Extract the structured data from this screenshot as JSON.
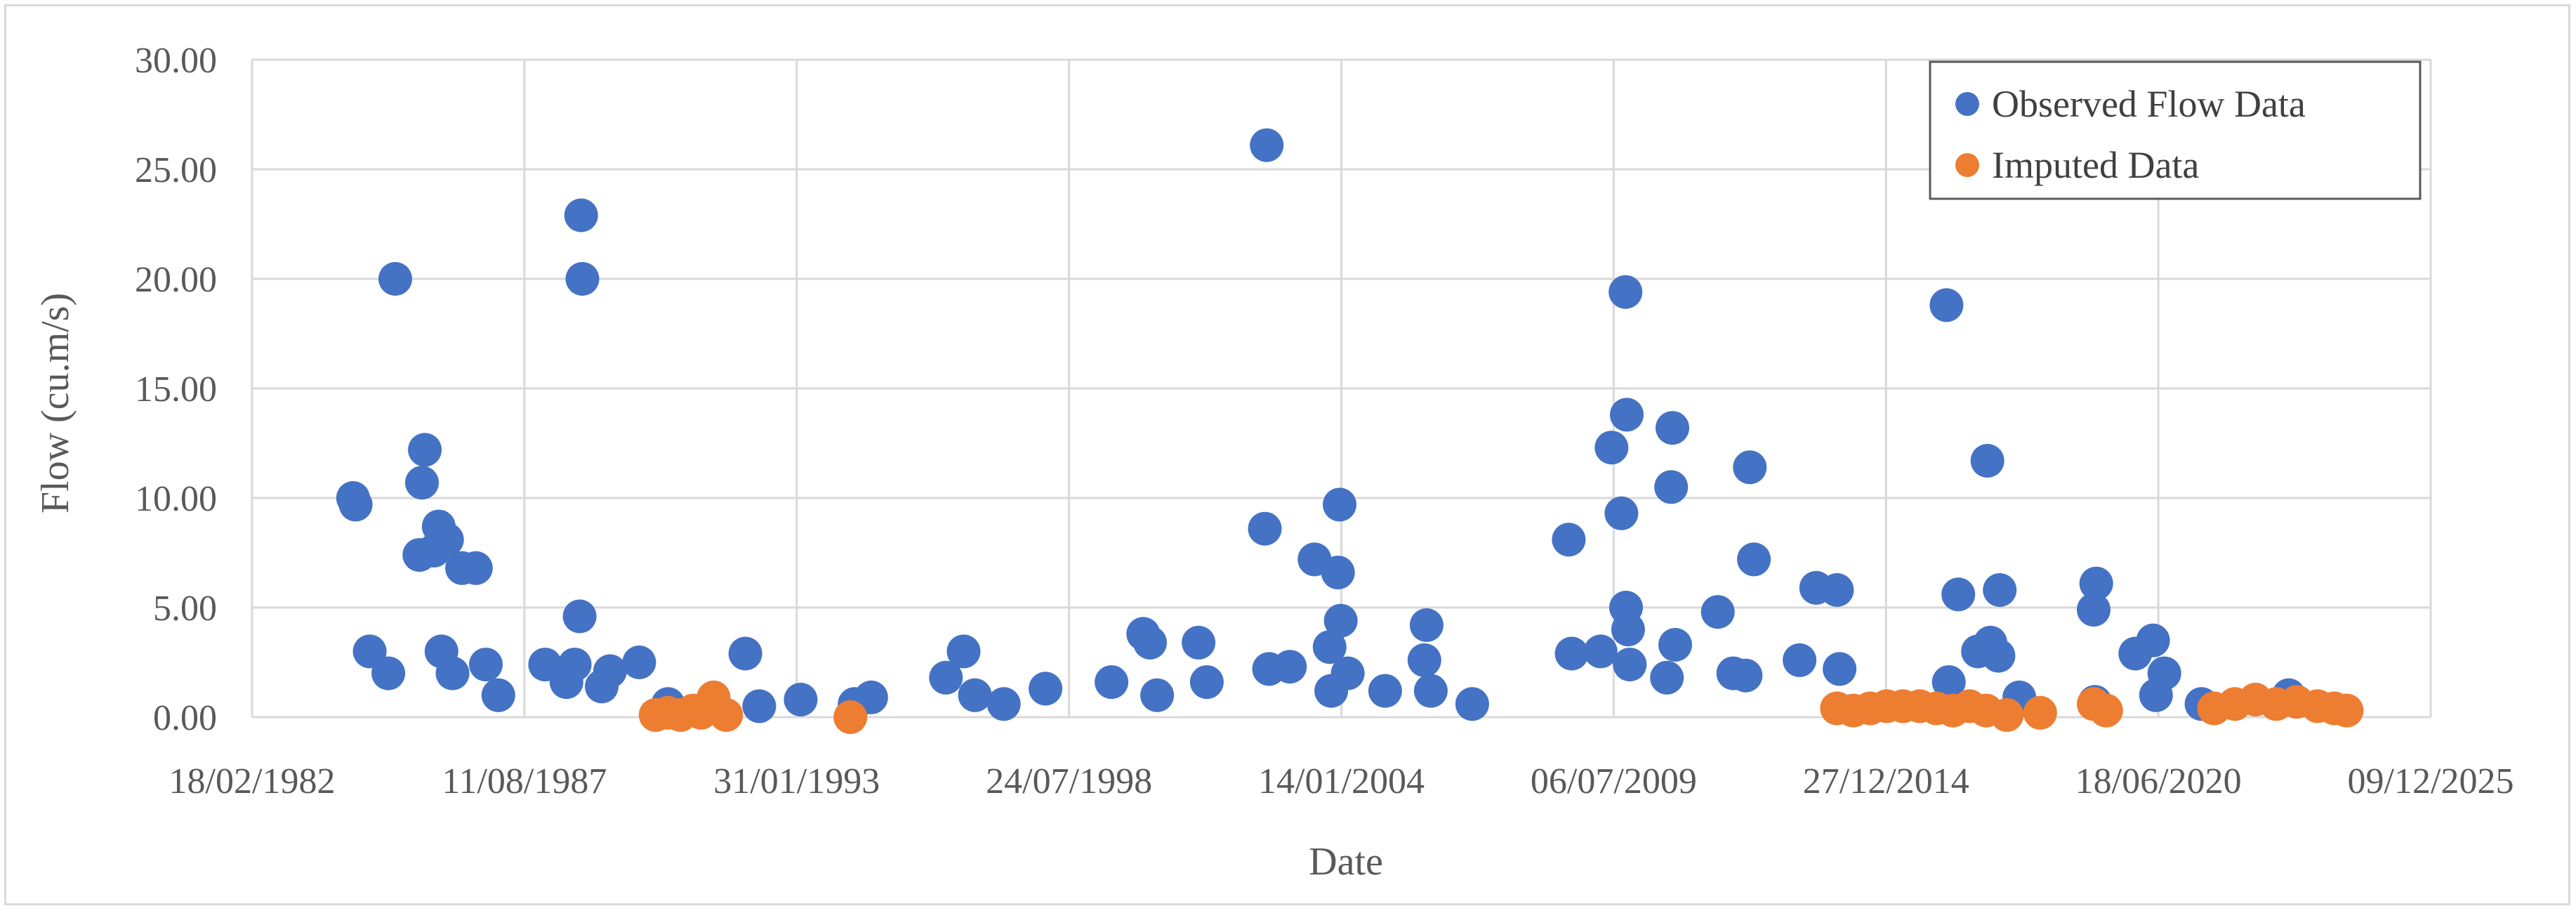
{
  "chart_data": {
    "type": "scatter",
    "title": "",
    "xlabel": "Date",
    "ylabel": "Flow (cu.m/s)",
    "x_axis_kind": "date",
    "xlim": [
      "1982-02-18",
      "2025-12-09"
    ],
    "ylim": [
      0,
      30
    ],
    "x_ticks": [
      "18/02/1982",
      "11/08/1987",
      "31/01/1993",
      "24/07/1998",
      "14/01/2004",
      "06/07/2009",
      "27/12/2014",
      "18/06/2020",
      "09/12/2025"
    ],
    "x_tick_dates": [
      "1982-02-18",
      "1987-08-11",
      "1993-01-31",
      "1998-07-24",
      "2004-01-14",
      "2009-07-06",
      "2014-12-27",
      "2020-06-18",
      "2025-12-09"
    ],
    "y_ticks": [
      "0.00",
      "5.00",
      "10.00",
      "15.00",
      "20.00",
      "25.00",
      "30.00"
    ],
    "y_tick_values": [
      0,
      5,
      10,
      15,
      20,
      25,
      30
    ],
    "grid": true,
    "legend_position": "top-right",
    "series": [
      {
        "name": "Observed Flow Data",
        "color": "#4472c4",
        "points": [
          [
            "1984-03-01",
            10.0
          ],
          [
            "1984-03-20",
            9.7
          ],
          [
            "1984-07-01",
            3.0
          ],
          [
            "1984-11-15",
            2.0
          ],
          [
            "1985-01-05",
            20.0
          ],
          [
            "1985-08-10",
            12.2
          ],
          [
            "1985-07-20",
            10.7
          ],
          [
            "1985-07-01",
            7.4
          ],
          [
            "1985-11-20",
            8.7
          ],
          [
            "1986-01-20",
            8.1
          ],
          [
            "1985-10-15",
            7.6
          ],
          [
            "1985-12-10",
            3.0
          ],
          [
            "1986-05-10",
            6.8
          ],
          [
            "1986-08-20",
            6.8
          ],
          [
            "1986-11-01",
            2.4
          ],
          [
            "1986-03-01",
            2.0
          ],
          [
            "1987-02-01",
            1.0
          ],
          [
            "1988-01-10",
            2.4
          ],
          [
            "1988-06-15",
            1.6
          ],
          [
            "1988-10-01",
            22.9
          ],
          [
            "1988-10-10",
            20.0
          ],
          [
            "1988-09-20",
            4.6
          ],
          [
            "1988-08-15",
            2.4
          ],
          [
            "1989-05-01",
            2.1
          ],
          [
            "1989-12-01",
            2.5
          ],
          [
            "1989-03-01",
            1.4
          ],
          [
            "1990-07-01",
            0.6
          ],
          [
            "1992-01-20",
            2.9
          ],
          [
            "1992-05-01",
            0.5
          ],
          [
            "1993-03-01",
            0.8
          ],
          [
            "1994-04-01",
            0.6
          ],
          [
            "1994-08-01",
            0.9
          ],
          [
            "1996-02-01",
            1.8
          ],
          [
            "1996-06-10",
            3.0
          ],
          [
            "1996-09-01",
            1.0
          ],
          [
            "1997-04-01",
            0.6
          ],
          [
            "1998-02-01",
            1.3
          ],
          [
            "1999-06-01",
            1.6
          ],
          [
            "2000-01-20",
            3.8
          ],
          [
            "2000-03-10",
            3.4
          ],
          [
            "2000-05-01",
            1.0
          ],
          [
            "2001-03-01",
            3.4
          ],
          [
            "2001-05-01",
            1.6
          ],
          [
            "2002-07-15",
            26.1
          ],
          [
            "2002-07-01",
            8.6
          ],
          [
            "2002-08-01",
            2.2
          ],
          [
            "2003-07-01",
            7.2
          ],
          [
            "2003-01-01",
            2.3
          ],
          [
            "2003-11-01",
            1.2
          ],
          [
            "2004-01-01",
            9.7
          ],
          [
            "2003-12-20",
            6.6
          ],
          [
            "2004-01-10",
            4.4
          ],
          [
            "2003-10-20",
            3.2
          ],
          [
            "2004-03-01",
            2.0
          ],
          [
            "2004-12-01",
            1.2
          ],
          [
            "2005-10-01",
            4.2
          ],
          [
            "2005-09-15",
            2.6
          ],
          [
            "2005-11-01",
            1.2
          ],
          [
            "2006-09-01",
            0.6
          ],
          [
            "2008-08-10",
            8.1
          ],
          [
            "2008-09-01",
            2.9
          ],
          [
            "2009-04-01",
            3.0
          ],
          [
            "2009-06-20",
            12.3
          ],
          [
            "2009-10-01",
            19.4
          ],
          [
            "2009-10-10",
            13.8
          ],
          [
            "2009-09-01",
            9.3
          ],
          [
            "2009-10-05",
            5.0
          ],
          [
            "2009-10-20",
            4.0
          ],
          [
            "2009-11-01",
            2.4
          ],
          [
            "2010-09-10",
            13.2
          ],
          [
            "2010-09-01",
            10.5
          ],
          [
            "2010-10-01",
            3.3
          ],
          [
            "2010-08-01",
            1.8
          ],
          [
            "2011-08-10",
            4.8
          ],
          [
            "2011-12-01",
            2.0
          ],
          [
            "2012-04-01",
            11.4
          ],
          [
            "2012-05-01",
            7.2
          ],
          [
            "2012-03-01",
            1.9
          ],
          [
            "2013-04-01",
            2.6
          ],
          [
            "2013-08-01",
            5.9
          ],
          [
            "2014-01-01",
            5.8
          ],
          [
            "2014-01-20",
            2.2
          ],
          [
            "2016-03-15",
            18.8
          ],
          [
            "2016-06-10",
            5.6
          ],
          [
            "2016-04-01",
            1.6
          ],
          [
            "2017-01-10",
            11.7
          ],
          [
            "2017-04-10",
            5.8
          ],
          [
            "2016-11-01",
            3.0
          ],
          [
            "2017-02-01",
            3.4
          ],
          [
            "2017-04-01",
            2.8
          ],
          [
            "2017-09-01",
            0.9
          ],
          [
            "2019-03-20",
            6.1
          ],
          [
            "2019-03-01",
            4.9
          ],
          [
            "2019-03-10",
            0.7
          ],
          [
            "2020-01-01",
            2.9
          ],
          [
            "2020-05-10",
            3.5
          ],
          [
            "2020-08-01",
            2.0
          ],
          [
            "2020-06-01",
            1.0
          ],
          [
            "2021-05-01",
            0.6
          ],
          [
            "2023-02-01",
            1.0
          ]
        ]
      },
      {
        "name": "Imputed Data",
        "color": "#ed7d31",
        "points": [
          [
            "1990-04-01",
            0.1
          ],
          [
            "1990-07-01",
            0.2
          ],
          [
            "1990-10-01",
            0.1
          ],
          [
            "1991-01-01",
            0.3
          ],
          [
            "1991-03-01",
            0.2
          ],
          [
            "1991-06-01",
            0.9
          ],
          [
            "1991-04-15",
            0.4
          ],
          [
            "1991-09-01",
            0.1
          ],
          [
            "1994-03-01",
            0.0
          ],
          [
            "2014-01-01",
            0.4
          ],
          [
            "2014-05-01",
            0.3
          ],
          [
            "2014-09-01",
            0.4
          ],
          [
            "2015-01-01",
            0.5
          ],
          [
            "2015-05-01",
            0.5
          ],
          [
            "2015-09-01",
            0.5
          ],
          [
            "2016-01-01",
            0.4
          ],
          [
            "2016-05-01",
            0.3
          ],
          [
            "2016-09-01",
            0.5
          ],
          [
            "2017-01-01",
            0.3
          ],
          [
            "2017-06-01",
            0.1
          ],
          [
            "2018-02-01",
            0.2
          ],
          [
            "2019-03-01",
            0.6
          ],
          [
            "2019-06-01",
            0.3
          ],
          [
            "2021-08-01",
            0.4
          ],
          [
            "2022-01-01",
            0.6
          ],
          [
            "2022-06-01",
            0.8
          ],
          [
            "2022-11-01",
            0.6
          ],
          [
            "2023-04-01",
            0.7
          ],
          [
            "2023-09-01",
            0.5
          ],
          [
            "2024-01-01",
            0.4
          ],
          [
            "2024-04-01",
            0.3
          ]
        ]
      }
    ]
  }
}
